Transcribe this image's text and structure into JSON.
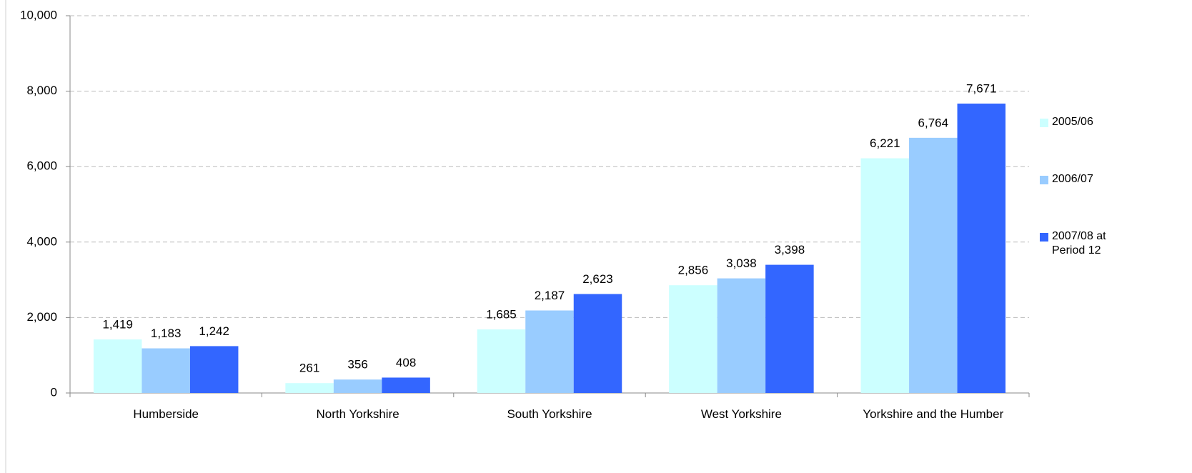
{
  "chart_data": {
    "type": "bar",
    "categories": [
      "Humberside",
      "North Yorkshire",
      "South Yorkshire",
      "West Yorkshire",
      "Yorkshire and the Humber"
    ],
    "series": [
      {
        "name": "2005/06",
        "color": "#ccffff",
        "values": [
          1419,
          261,
          1685,
          2856,
          6221
        ],
        "value_labels": [
          "1,419",
          "261",
          "1,685",
          "2,856",
          "6,221"
        ]
      },
      {
        "name": "2006/07",
        "color": "#99ccff",
        "values": [
          1183,
          356,
          2187,
          3038,
          6764
        ],
        "value_labels": [
          "1,183",
          "356",
          "2,187",
          "3,038",
          "6,764"
        ]
      },
      {
        "name": "2007/08 at Period 12",
        "color": "#3366ff",
        "values": [
          1242,
          408,
          2623,
          3398,
          7671
        ],
        "value_labels": [
          "1,242",
          "408",
          "2,623",
          "3,398",
          "7,671"
        ]
      }
    ],
    "ylim": [
      0,
      10000
    ],
    "yticks": [
      0,
      {
        "value": 2000,
        "label": "2,000"
      },
      {
        "value": 4000,
        "label": "4,000"
      },
      {
        "value": 6000,
        "label": "6,000"
      },
      {
        "value": 8000,
        "label": "8,000"
      },
      {
        "value": 10000,
        "label": "10,000"
      }
    ],
    "grid": true,
    "legend": "right"
  }
}
